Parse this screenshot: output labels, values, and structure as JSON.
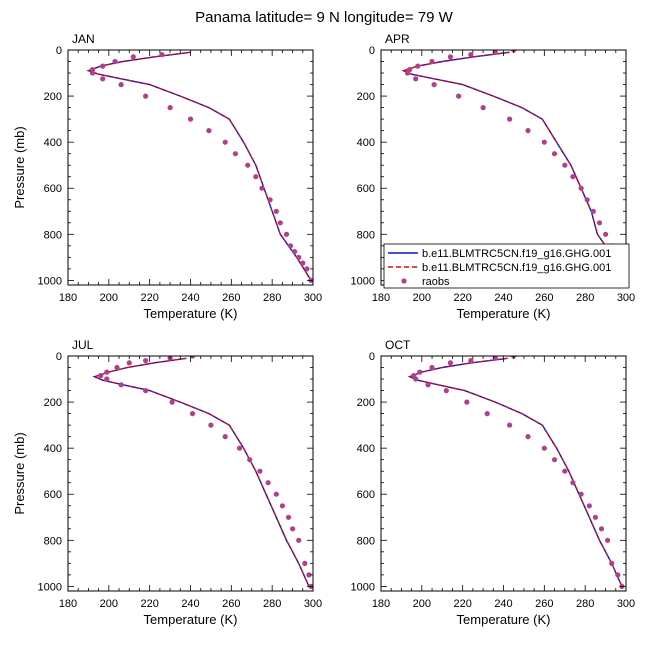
{
  "title": "Panama  latitude= 9 N longitude= 79 W",
  "chart_data": [
    {
      "type": "line",
      "panel": "JAN",
      "xlabel": "Temperature (K)",
      "ylabel": "Pressure (mb)",
      "xlim": [
        180,
        300
      ],
      "ylim": [
        1020,
        0
      ],
      "xticks": [
        180,
        200,
        220,
        240,
        260,
        280,
        300
      ],
      "yticks": [
        0,
        200,
        400,
        600,
        800,
        1000
      ],
      "series": [
        {
          "name": "b.e11.BLMTRC5CN.f19_g16.GHG.001",
          "style": "solid",
          "color": "#1010c8",
          "x": [
            240,
            222,
            207,
            196,
            190,
            195,
            206,
            220,
            235,
            249,
            259,
            266,
            272,
            276,
            280,
            284,
            292,
            299
          ],
          "y": [
            10,
            30,
            50,
            70,
            90,
            105,
            125,
            150,
            200,
            250,
            300,
            400,
            500,
            600,
            700,
            800,
            900,
            1000
          ]
        },
        {
          "name": "b.e11.BLMTRC5CN.f19_g16.GHG.001",
          "style": "dashed",
          "color": "#d01010",
          "x": [
            240,
            222,
            207,
            196,
            190,
            195,
            206,
            220,
            235,
            249,
            259,
            266,
            272,
            276,
            280,
            284,
            292,
            299
          ],
          "y": [
            10,
            30,
            50,
            70,
            90,
            105,
            125,
            150,
            200,
            250,
            300,
            400,
            500,
            600,
            700,
            800,
            900,
            1000
          ]
        },
        {
          "name": "raobs",
          "style": "markers",
          "color": "#b0408a",
          "x": [
            226,
            212,
            203,
            197,
            192,
            192,
            197,
            206,
            218,
            230,
            240,
            249,
            257,
            262,
            268,
            272,
            275,
            279,
            282,
            284,
            287,
            289,
            291,
            293,
            295,
            297,
            299
          ],
          "y": [
            20,
            30,
            50,
            70,
            85,
            100,
            125,
            150,
            200,
            250,
            300,
            350,
            400,
            450,
            500,
            550,
            600,
            650,
            700,
            750,
            800,
            850,
            875,
            900,
            925,
            950,
            1000
          ]
        }
      ]
    },
    {
      "type": "line",
      "panel": "APR",
      "xlabel": "Temperature (K)",
      "ylabel": "",
      "xlim": [
        180,
        300
      ],
      "ylim": [
        1020,
        0
      ],
      "xticks": [
        180,
        200,
        220,
        240,
        260,
        280,
        300
      ],
      "yticks": [
        0,
        200,
        400,
        600,
        800,
        1000
      ],
      "legend": "bottom-right",
      "series": [
        {
          "name": "b.e11.BLMTRC5CN.f19_g16.GHG.001",
          "style": "solid",
          "color": "#1010c8",
          "x": [
            243,
            225,
            210,
            198,
            191,
            195,
            206,
            220,
            235,
            249,
            259,
            266,
            273,
            278,
            283,
            286,
            294,
            300
          ],
          "y": [
            10,
            30,
            50,
            70,
            90,
            105,
            125,
            150,
            200,
            250,
            300,
            400,
            500,
            600,
            700,
            800,
            900,
            1000
          ]
        },
        {
          "name": "b.e11.BLMTRC5CN.f19_g16.GHG.001",
          "style": "dashed",
          "color": "#d01010",
          "x": [
            243,
            225,
            210,
            198,
            191,
            195,
            206,
            220,
            235,
            249,
            259,
            266,
            273,
            278,
            283,
            286,
            294,
            300
          ],
          "y": [
            10,
            30,
            50,
            70,
            90,
            105,
            125,
            150,
            200,
            250,
            300,
            400,
            500,
            600,
            700,
            800,
            900,
            1000
          ]
        },
        {
          "name": "raobs",
          "style": "markers",
          "color": "#b0408a",
          "x": [
            245,
            236,
            224,
            214,
            205,
            198,
            194,
            193,
            197,
            206,
            218,
            230,
            243,
            252,
            260,
            265,
            270,
            274,
            278,
            281,
            284,
            287,
            290,
            293,
            296,
            298,
            300
          ],
          "y": [
            0,
            10,
            20,
            30,
            50,
            70,
            85,
            100,
            125,
            150,
            200,
            250,
            300,
            350,
            400,
            450,
            500,
            550,
            600,
            650,
            700,
            750,
            800,
            850,
            900,
            950,
            1000
          ]
        }
      ]
    },
    {
      "type": "line",
      "panel": "JUL",
      "xlabel": "Temperature (K)",
      "ylabel": "Pressure (mb)",
      "xlim": [
        180,
        300
      ],
      "ylim": [
        1020,
        0
      ],
      "xticks": [
        180,
        200,
        220,
        240,
        260,
        280,
        300
      ],
      "yticks": [
        0,
        200,
        400,
        600,
        800,
        1000
      ],
      "series": [
        {
          "name": "b.e11.BLMTRC5CN.f19_g16.GHG.001",
          "style": "solid",
          "color": "#1010c8",
          "x": [
            238,
            222,
            209,
            200,
            193,
            197,
            207,
            220,
            235,
            249,
            259,
            266,
            272,
            277,
            282,
            287,
            293,
            298
          ],
          "y": [
            10,
            30,
            50,
            70,
            90,
            105,
            125,
            150,
            200,
            250,
            300,
            400,
            500,
            600,
            700,
            800,
            900,
            1000
          ]
        },
        {
          "name": "b.e11.BLMTRC5CN.f19_g16.GHG.001",
          "style": "dashed",
          "color": "#d01010",
          "x": [
            238,
            222,
            209,
            200,
            193,
            197,
            207,
            220,
            235,
            249,
            259,
            266,
            272,
            277,
            282,
            287,
            293,
            298
          ],
          "y": [
            10,
            30,
            50,
            70,
            90,
            105,
            125,
            150,
            200,
            250,
            300,
            400,
            500,
            600,
            700,
            800,
            900,
            1000
          ]
        },
        {
          "name": "raobs",
          "style": "markers",
          "color": "#b0408a",
          "x": [
            241,
            230,
            218,
            210,
            204,
            199,
            196,
            199,
            206,
            218,
            231,
            241,
            250,
            257,
            264,
            269,
            274,
            278,
            282,
            285,
            288,
            290,
            293,
            296,
            298,
            299
          ],
          "y": [
            0,
            10,
            20,
            30,
            50,
            70,
            85,
            100,
            125,
            150,
            200,
            250,
            300,
            350,
            400,
            450,
            500,
            550,
            600,
            650,
            700,
            750,
            800,
            900,
            950,
            1000
          ]
        }
      ]
    },
    {
      "type": "line",
      "panel": "OCT",
      "xlabel": "Temperature (K)",
      "ylabel": "",
      "xlim": [
        180,
        300
      ],
      "ylim": [
        1020,
        0
      ],
      "xticks": [
        180,
        200,
        220,
        240,
        260,
        280,
        300
      ],
      "yticks": [
        0,
        200,
        400,
        600,
        800,
        1000
      ],
      "series": [
        {
          "name": "b.e11.BLMTRC5CN.f19_g16.GHG.001",
          "style": "solid",
          "color": "#1010c8",
          "x": [
            242,
            224,
            210,
            200,
            194,
            198,
            208,
            221,
            236,
            249,
            259,
            266,
            272,
            277,
            282,
            287,
            293,
            298
          ],
          "y": [
            10,
            30,
            50,
            70,
            90,
            105,
            125,
            150,
            200,
            250,
            300,
            400,
            500,
            600,
            700,
            800,
            900,
            1000
          ]
        },
        {
          "name": "b.e11.BLMTRC5CN.f19_g16.GHG.001",
          "style": "dashed",
          "color": "#d01010",
          "x": [
            242,
            224,
            210,
            200,
            194,
            198,
            208,
            221,
            236,
            249,
            259,
            266,
            272,
            277,
            282,
            287,
            293,
            298
          ],
          "y": [
            10,
            30,
            50,
            70,
            90,
            105,
            125,
            150,
            200,
            250,
            300,
            400,
            500,
            600,
            700,
            800,
            900,
            1000
          ]
        },
        {
          "name": "raobs",
          "style": "markers",
          "color": "#b0408a",
          "x": [
            245,
            236,
            224,
            214,
            205,
            199,
            196,
            197,
            203,
            212,
            222,
            232,
            243,
            252,
            260,
            265,
            270,
            274,
            278,
            282,
            285,
            288,
            291,
            293,
            296,
            298
          ],
          "y": [
            0,
            10,
            20,
            30,
            50,
            70,
            85,
            100,
            125,
            150,
            200,
            250,
            300,
            350,
            400,
            450,
            500,
            550,
            600,
            650,
            700,
            750,
            800,
            900,
            950,
            1000
          ]
        }
      ]
    }
  ]
}
